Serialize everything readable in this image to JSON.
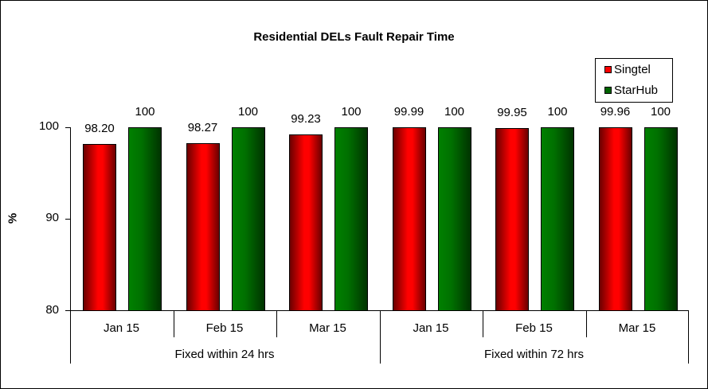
{
  "chart_data": {
    "type": "bar",
    "title": "Residential DELs Fault Repair Time",
    "xlabel": "",
    "ylabel": "%",
    "ylim": [
      80,
      100
    ],
    "yticks": [
      80,
      90,
      100
    ],
    "grid": false,
    "legend_position": "top-right",
    "groups": [
      {
        "label": "Fixed within 24 hrs",
        "categories": [
          "Jan 15",
          "Feb 15",
          "Mar 15"
        ]
      },
      {
        "label": "Fixed within 72 hrs",
        "categories": [
          "Jan 15",
          "Feb 15",
          "Mar 15"
        ]
      }
    ],
    "categories": [
      "Jan 15",
      "Feb 15",
      "Mar 15",
      "Jan 15",
      "Feb 15",
      "Mar 15"
    ],
    "series": [
      {
        "name": "Singtel",
        "color": "#ff0000",
        "values": [
          98.2,
          98.27,
          99.23,
          99.99,
          99.95,
          99.96
        ],
        "labels": [
          "98.20",
          "98.27",
          "99.23",
          "99.99",
          "99.95",
          "99.96"
        ]
      },
      {
        "name": "StarHub",
        "color": "#008000",
        "values": [
          100,
          100,
          100,
          100,
          100,
          100
        ],
        "labels": [
          "100",
          "100",
          "100",
          "100",
          "100",
          "100"
        ]
      }
    ]
  },
  "ui": {
    "title": "Residential DELs Fault Repair Time",
    "ylabel": "%",
    "yticks": [
      "100",
      "90",
      "80"
    ],
    "legend": [
      "Singtel",
      "StarHub"
    ],
    "group_labels": [
      "Fixed within 24 hrs",
      "Fixed within 72 hrs"
    ]
  }
}
